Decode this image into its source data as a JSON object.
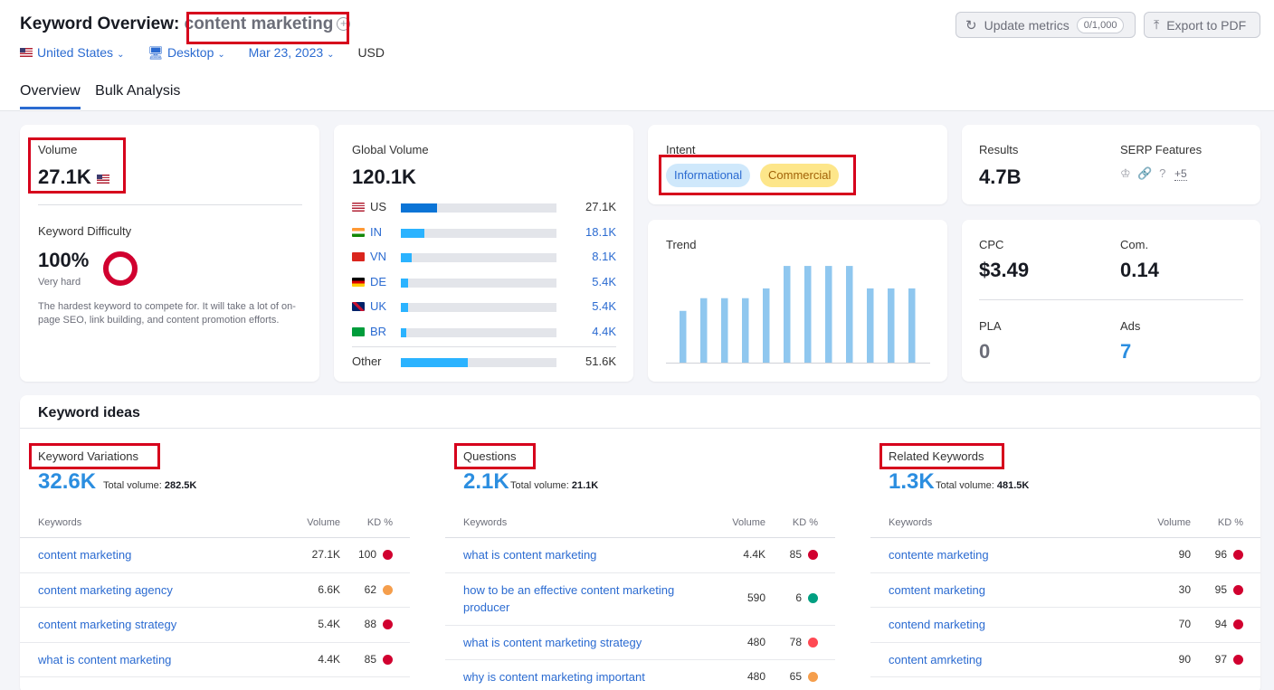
{
  "header": {
    "title_prefix": "Keyword Overview:",
    "keyword": "content marketing",
    "filters": {
      "country": "United States",
      "device": "Desktop",
      "date": "Mar 23, 2023",
      "currency": "USD"
    },
    "update_label": "Update metrics",
    "update_counter": "0/1,000",
    "export_label": "Export to PDF",
    "tabs": [
      "Overview",
      "Bulk Analysis"
    ]
  },
  "volume": {
    "label": "Volume",
    "value": "27.1K"
  },
  "difficulty": {
    "label": "Keyword Difficulty",
    "value": "100%",
    "level": "Very hard",
    "description": "The hardest keyword to compete for. It will take a lot of on-page SEO, link building, and content promotion efforts.",
    "fraction": 1.0,
    "color": "#d1002f"
  },
  "global_volume": {
    "label": "Global Volume",
    "value": "120.1K",
    "rows": [
      {
        "country": "US",
        "value": "27.1K",
        "fraction": 0.23
      },
      {
        "country": "IN",
        "value": "18.1K",
        "fraction": 0.15
      },
      {
        "country": "VN",
        "value": "8.1K",
        "fraction": 0.07
      },
      {
        "country": "DE",
        "value": "5.4K",
        "fraction": 0.045
      },
      {
        "country": "UK",
        "value": "5.4K",
        "fraction": 0.045
      },
      {
        "country": "BR",
        "value": "4.4K",
        "fraction": 0.037
      }
    ],
    "other": {
      "country": "Other",
      "value": "51.6K",
      "fraction": 0.43
    }
  },
  "intent": {
    "label": "Intent",
    "chips": [
      {
        "text": "Informational",
        "bg": "#cfe8fb",
        "fg": "#2b6bd1"
      },
      {
        "text": "Commercial",
        "bg": "#fde68a",
        "fg": "#a16207"
      }
    ]
  },
  "results": {
    "label": "Results",
    "value": "4.7B",
    "serp_label": "SERP Features",
    "serp_more": "+5"
  },
  "trend": {
    "label": "Trend",
    "values": [
      0.53,
      0.66,
      0.66,
      0.66,
      0.76,
      0.99,
      0.99,
      0.99,
      0.99,
      0.76,
      0.76,
      0.76
    ]
  },
  "metrics": {
    "cpc_label": "CPC",
    "cpc": "$3.49",
    "com_label": "Com.",
    "com": "0.14",
    "pla_label": "PLA",
    "pla": "0",
    "ads_label": "Ads",
    "ads": "7"
  },
  "ideas": {
    "title": "Keyword ideas",
    "columns": [
      {
        "heading": "Keyword Variations",
        "count": "32.6K",
        "total_label": "Total volume:",
        "total": "282.5K",
        "col_kw": "Keywords",
        "col_vol": "Volume",
        "col_kd": "KD %",
        "rows": [
          {
            "kw": "content marketing",
            "vol": "27.1K",
            "kd": "100",
            "color": "#d1002f"
          },
          {
            "kw": "content marketing agency",
            "vol": "6.6K",
            "kd": "62",
            "color": "#f59e4c"
          },
          {
            "kw": "content marketing strategy",
            "vol": "5.4K",
            "kd": "88",
            "color": "#d1002f"
          },
          {
            "kw": "what is content marketing",
            "vol": "4.4K",
            "kd": "85",
            "color": "#d1002f"
          }
        ]
      },
      {
        "heading": "Questions",
        "count": "2.1K",
        "total_label": "Total volume:",
        "total": "21.1K",
        "col_kw": "Keywords",
        "col_vol": "Volume",
        "col_kd": "KD %",
        "rows": [
          {
            "kw": "what is content marketing",
            "vol": "4.4K",
            "kd": "85",
            "color": "#d1002f"
          },
          {
            "kw": "how to be an effective content marketing producer",
            "vol": "590",
            "kd": "6",
            "color": "#009f81"
          },
          {
            "kw": "what is content marketing strategy",
            "vol": "480",
            "kd": "78",
            "color": "#ff4953"
          },
          {
            "kw": "why is content marketing important",
            "vol": "480",
            "kd": "65",
            "color": "#f59e4c"
          }
        ]
      },
      {
        "heading": "Related Keywords",
        "count": "1.3K",
        "total_label": "Total volume:",
        "total": "481.5K",
        "col_kw": "Keywords",
        "col_vol": "Volume",
        "col_kd": "KD %",
        "rows": [
          {
            "kw": "contente marketing",
            "vol": "90",
            "kd": "96",
            "color": "#d1002f"
          },
          {
            "kw": "comtent marketing",
            "vol": "30",
            "kd": "95",
            "color": "#d1002f"
          },
          {
            "kw": "contend marketing",
            "vol": "70",
            "kd": "94",
            "color": "#d1002f"
          },
          {
            "kw": "content amrketing",
            "vol": "90",
            "kd": "97",
            "color": "#d1002f"
          }
        ]
      }
    ]
  }
}
